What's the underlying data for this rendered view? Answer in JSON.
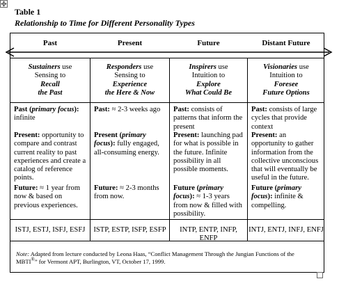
{
  "header": {
    "label": "Table 1",
    "title": "Relationship to Time for Different Personality Types"
  },
  "table": {
    "columns": [
      "Past",
      "Present",
      "Future",
      "Distant Future"
    ],
    "intro": [
      [
        [
          {
            "text": "Sustainers",
            "style": "bi"
          },
          {
            "text": " use",
            "style": "n"
          }
        ],
        [
          {
            "text": "Sensing to",
            "style": "n"
          }
        ],
        [
          {
            "text": "Recall",
            "style": "bi"
          }
        ],
        [
          {
            "text": "the Past",
            "style": "bi"
          }
        ]
      ],
      [
        [
          {
            "text": "Responders",
            "style": "bi"
          },
          {
            "text": " use",
            "style": "n"
          }
        ],
        [
          {
            "text": "Sensing to",
            "style": "n"
          }
        ],
        [
          {
            "text": "Experience",
            "style": "bi"
          }
        ],
        [
          {
            "text": "the Here & Now",
            "style": "bi"
          }
        ]
      ],
      [
        [
          {
            "text": "Inspirers",
            "style": "bi"
          },
          {
            "text": " use",
            "style": "n"
          }
        ],
        [
          {
            "text": "Intuition to",
            "style": "n"
          }
        ],
        [
          {
            "text": "Explore",
            "style": "bi"
          }
        ],
        [
          {
            "text": "What Could Be",
            "style": "bi"
          }
        ]
      ],
      [
        [
          {
            "text": "Visionaries",
            "style": "bi"
          },
          {
            "text": " use",
            "style": "n"
          }
        ],
        [
          {
            "text": "Intuition to",
            "style": "n"
          }
        ],
        [
          {
            "text": "Foresee",
            "style": "bi"
          }
        ],
        [
          {
            "text": "Future Options",
            "style": "bi"
          }
        ]
      ]
    ],
    "body": [
      [
        [
          {
            "text": "Past (",
            "style": "b"
          },
          {
            "text": "primary focus",
            "style": "bi"
          },
          {
            "text": "):",
            "style": "b"
          },
          {
            "text": " infinite",
            "style": "n"
          }
        ],
        [
          {
            "text": "Present:",
            "style": "b"
          },
          {
            "text": " opportunity to compare and contrast current reality to past experiences and create a catalog of reference points.",
            "style": "n"
          }
        ],
        [
          {
            "text": "Future:",
            "style": "b"
          },
          {
            "text": " ≈ 1 year from now & based on previous experiences.",
            "style": "n"
          }
        ]
      ],
      [
        [
          {
            "text": "Past:",
            "style": "b"
          },
          {
            "text": " ≈ 2-3 weeks ago",
            "style": "n"
          }
        ],
        [
          {
            "text": "Present (",
            "style": "b"
          },
          {
            "text": "primary focus",
            "style": "bi"
          },
          {
            "text": "):",
            "style": "b"
          },
          {
            "text": " fully engaged, all-consuming energy.",
            "style": "n"
          }
        ],
        [
          {
            "text": "Future:",
            "style": "b"
          },
          {
            "text": " ≈ 2-3 months from now.",
            "style": "n"
          }
        ]
      ],
      [
        [
          {
            "text": "Past:",
            "style": "b"
          },
          {
            "text": " consists of patterns that inform the present",
            "style": "n"
          }
        ],
        [
          {
            "text": "Present:",
            "style": "b"
          },
          {
            "text": " launching pad for what is possible in the future. Infinite possibility in all possible moments.",
            "style": "n"
          }
        ],
        [
          {
            "text": "Future (",
            "style": "b"
          },
          {
            "text": "primary focus",
            "style": "bi"
          },
          {
            "text": "):",
            "style": "b"
          },
          {
            "text": " ≈ 1-3 years from now & filled with possibility.",
            "style": "n"
          }
        ]
      ],
      [
        [
          {
            "text": "Past:",
            "style": "b"
          },
          {
            "text": " consists of large cycles that provide context",
            "style": "n"
          }
        ],
        [
          {
            "text": "Present:",
            "style": "b"
          },
          {
            "text": " an opportunity to gather information from the collective unconscious that will eventually be useful in the future.",
            "style": "n"
          }
        ],
        [
          {
            "text": "Future (",
            "style": "b"
          },
          {
            "text": "primary focus",
            "style": "bi"
          },
          {
            "text": "):",
            "style": "b"
          },
          {
            "text": " infinite & compelling.",
            "style": "n"
          }
        ]
      ]
    ],
    "types": [
      "ISTJ, ESTJ, ISFJ, ESFJ",
      "ISTP, ESTP, ISFP, ESFP",
      "INTP, ENTP, INFP, ENFP",
      "INTJ, ENTJ, INFJ, ENFJ"
    ],
    "note": [
      {
        "text": "Note:",
        "style": "i"
      },
      {
        "text": " Adapted from lecture conducted by Leona Haas, “Conflict Management Through the Jungian Functions of the MBTI",
        "style": "n"
      },
      {
        "text": "®",
        "style": "sup"
      },
      {
        "text": "” for Vermont APT, Burlington, VT, October 17, 1999.",
        "style": "n"
      }
    ]
  }
}
